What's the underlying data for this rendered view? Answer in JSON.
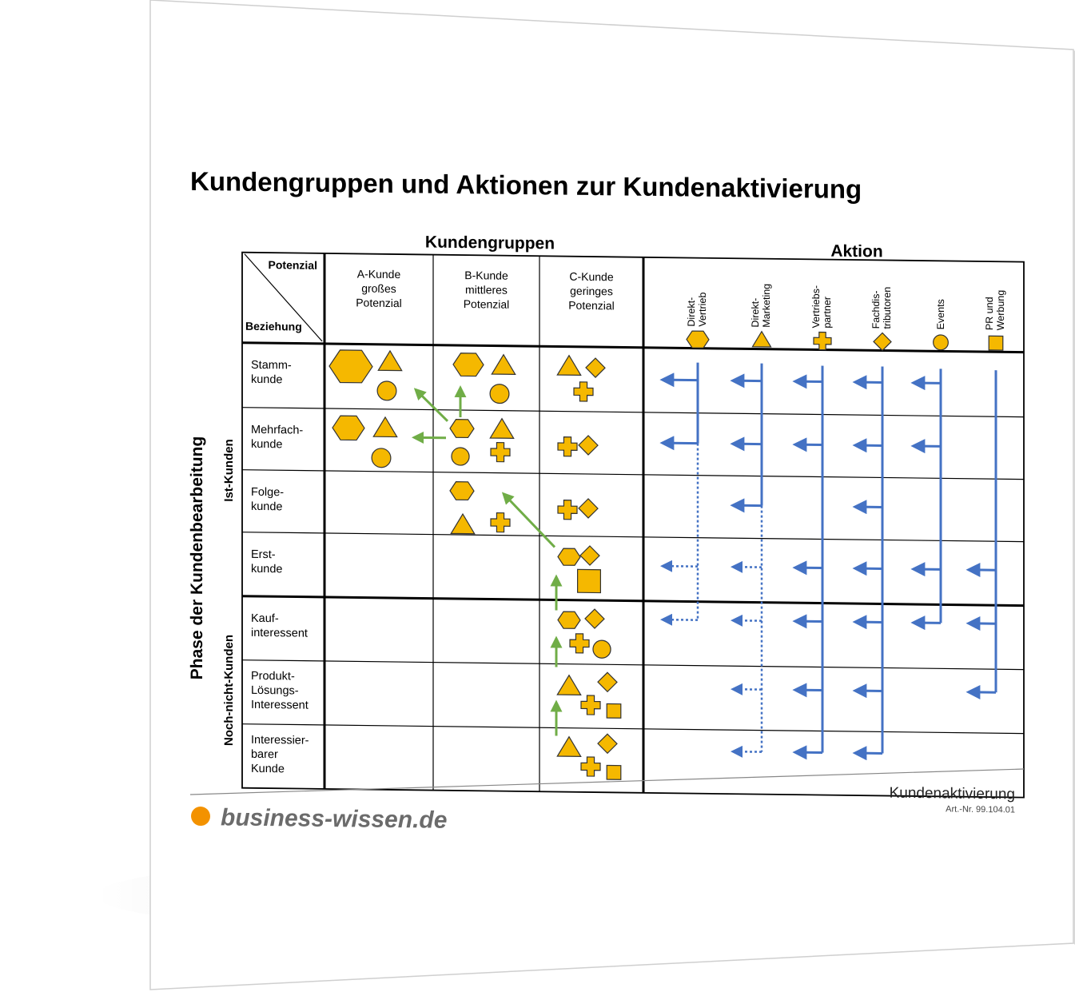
{
  "title": "Kundengruppen und Aktionen zur Kundenaktivierung",
  "header": {
    "kundengruppen": "Kundengruppen",
    "aktion": "Aktion",
    "potenzial": "Potenzial",
    "beziehung": "Beziehung"
  },
  "groups": [
    {
      "line1": "A-Kunde",
      "line2": "großes",
      "line3": "Potenzial"
    },
    {
      "line1": "B-Kunde",
      "line2": "mittleres",
      "line3": "Potenzial"
    },
    {
      "line1": "C-Kunde",
      "line2": "geringes",
      "line3": "Potenzial"
    }
  ],
  "actions": [
    {
      "line1": "Direkt-",
      "line2": "Vertrieb",
      "icon": "hexagon-icon"
    },
    {
      "line1": "Direkt-",
      "line2": "Marketing",
      "icon": "triangle-icon"
    },
    {
      "line1": "Vertriebs-",
      "line2": "partner",
      "icon": "cross-icon"
    },
    {
      "line1": "Fachdis-",
      "line2": "tributoren",
      "icon": "diamond-icon"
    },
    {
      "line1": "Events",
      "line2": "",
      "icon": "circle-icon"
    },
    {
      "line1": "PR und",
      "line2": "Werbung",
      "icon": "square-icon"
    }
  ],
  "rows": [
    {
      "lines": [
        "Stamm-",
        "kunde"
      ]
    },
    {
      "lines": [
        "Mehrfach-",
        "kunde"
      ]
    },
    {
      "lines": [
        "Folge-",
        "kunde"
      ]
    },
    {
      "lines": [
        "Erst-",
        "kunde"
      ]
    },
    {
      "lines": [
        "Kauf-",
        "interessent"
      ]
    },
    {
      "lines": [
        "Produkt-",
        "Lösungs-",
        "Interessent"
      ]
    },
    {
      "lines": [
        "Interessier-",
        "barer",
        "Kunde"
      ]
    }
  ],
  "side": {
    "phase": "Phase der Kundenbearbeitung",
    "ist": "Ist-Kunden",
    "noch": "Noch-nicht-Kunden"
  },
  "footer": {
    "doc_title": "Kundenaktivierung",
    "art_nr": "Art.-Nr. 99.104.01",
    "brand": "business-wissen.de"
  },
  "colors": {
    "shape_fill": "#F5B800",
    "shape_stroke": "#333333",
    "action_arrow": "#4472C4",
    "progress_arrow": "#70AD47",
    "logo_dot": "#F39200"
  }
}
